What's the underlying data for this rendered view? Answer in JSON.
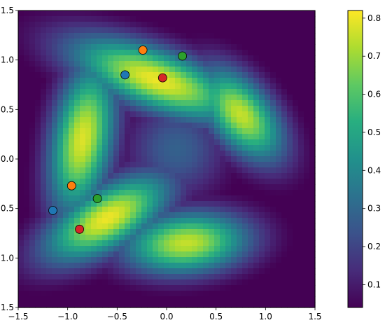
{
  "chart_data": {
    "type": "heatmap",
    "title": "",
    "xlabel": "",
    "ylabel": "",
    "xlim": [
      -1.5,
      1.5
    ],
    "ylim": [
      -1.5,
      1.5
    ],
    "x_ticks": [
      -1.5,
      -1.0,
      -0.5,
      0.0,
      0.5,
      1.0,
      1.5
    ],
    "x_tick_labels": [
      "−1.5",
      "−1.0",
      "−0.5",
      "0.0",
      "0.5",
      "1.0",
      "1.5"
    ],
    "y_ticks": [
      -1.5,
      -1.0,
      -0.5,
      0.0,
      0.5,
      1.0,
      1.5
    ],
    "y_tick_labels": [
      "−1.5",
      "−1.0",
      "−0.5",
      "0.0",
      "0.5",
      "1.0",
      "1.5"
    ],
    "grid": false,
    "colormap": "viridis",
    "colorbar": {
      "range": [
        0.04,
        0.82
      ],
      "ticks": [
        0.1,
        0.2,
        0.3,
        0.4,
        0.5,
        0.6,
        0.7,
        0.8
      ],
      "tick_labels": [
        "0.1",
        "0.2",
        "0.3",
        "0.4",
        "0.5",
        "0.6",
        "0.7",
        "0.8"
      ]
    },
    "field": {
      "description_free": true,
      "background_level": 0.04,
      "center_level": 0.3,
      "ridges": [
        {
          "center": [
            -0.1,
            0.8
          ],
          "amplitude": 0.8,
          "length_sigma": 0.65,
          "width_sigma": 0.22,
          "angle_deg": -20
        },
        {
          "center": [
            0.75,
            0.45
          ],
          "amplitude": 0.75,
          "length_sigma": 0.4,
          "width_sigma": 0.22,
          "angle_deg": -50
        },
        {
          "center": [
            -0.85,
            0.2
          ],
          "amplitude": 0.78,
          "length_sigma": 0.55,
          "width_sigma": 0.22,
          "angle_deg": 80
        },
        {
          "center": [
            -0.6,
            -0.6
          ],
          "amplitude": 0.8,
          "length_sigma": 0.5,
          "width_sigma": 0.22,
          "angle_deg": 30
        },
        {
          "center": [
            0.2,
            -0.85
          ],
          "amplitude": 0.75,
          "length_sigma": 0.45,
          "width_sigma": 0.22,
          "angle_deg": 5
        },
        {
          "center": [
            0.1,
            0.1
          ],
          "amplitude": 0.28,
          "length_sigma": 0.35,
          "width_sigma": 0.35,
          "angle_deg": 0
        }
      ]
    },
    "points": [
      {
        "x": -0.42,
        "y": 0.85,
        "color": "#1f77b4"
      },
      {
        "x": -0.24,
        "y": 1.1,
        "color": "#ff7f0e"
      },
      {
        "x": 0.16,
        "y": 1.04,
        "color": "#2ca02c"
      },
      {
        "x": -0.04,
        "y": 0.82,
        "color": "#d62728"
      },
      {
        "x": -1.15,
        "y": -0.52,
        "color": "#1f77b4"
      },
      {
        "x": -0.96,
        "y": -0.27,
        "color": "#ff7f0e"
      },
      {
        "x": -0.7,
        "y": -0.4,
        "color": "#2ca02c"
      },
      {
        "x": -0.88,
        "y": -0.71,
        "color": "#d62728"
      }
    ]
  }
}
